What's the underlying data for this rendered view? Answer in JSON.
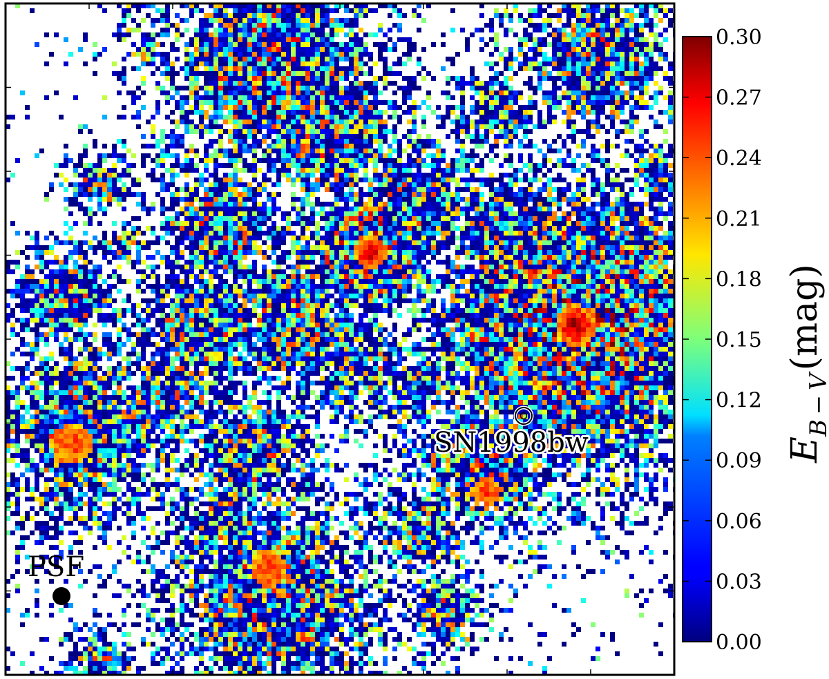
{
  "chart_data": {
    "type": "heatmap",
    "title": "",
    "xlabel": "",
    "ylabel": "",
    "colormap": "jet",
    "colorbar": {
      "label_main": "E",
      "label_sub": "B − V",
      "label_unit": "(mag)",
      "range": [
        0.0,
        0.3
      ],
      "ticks": [
        "0.00",
        "0.03",
        "0.06",
        "0.09",
        "0.12",
        "0.15",
        "0.18",
        "0.21",
        "0.24",
        "0.27",
        "0.30"
      ]
    },
    "annotations": [
      {
        "id": "sn",
        "text": "SN1998bw",
        "marker": "open-circle"
      },
      {
        "id": "psf",
        "text": "PSF",
        "marker": "filled-circle"
      }
    ],
    "grid": false,
    "legend": "none"
  },
  "colors": {
    "frame": "#000000",
    "background": "#ffffff",
    "jet_low": "#00007f",
    "jet_high": "#7f0000"
  }
}
